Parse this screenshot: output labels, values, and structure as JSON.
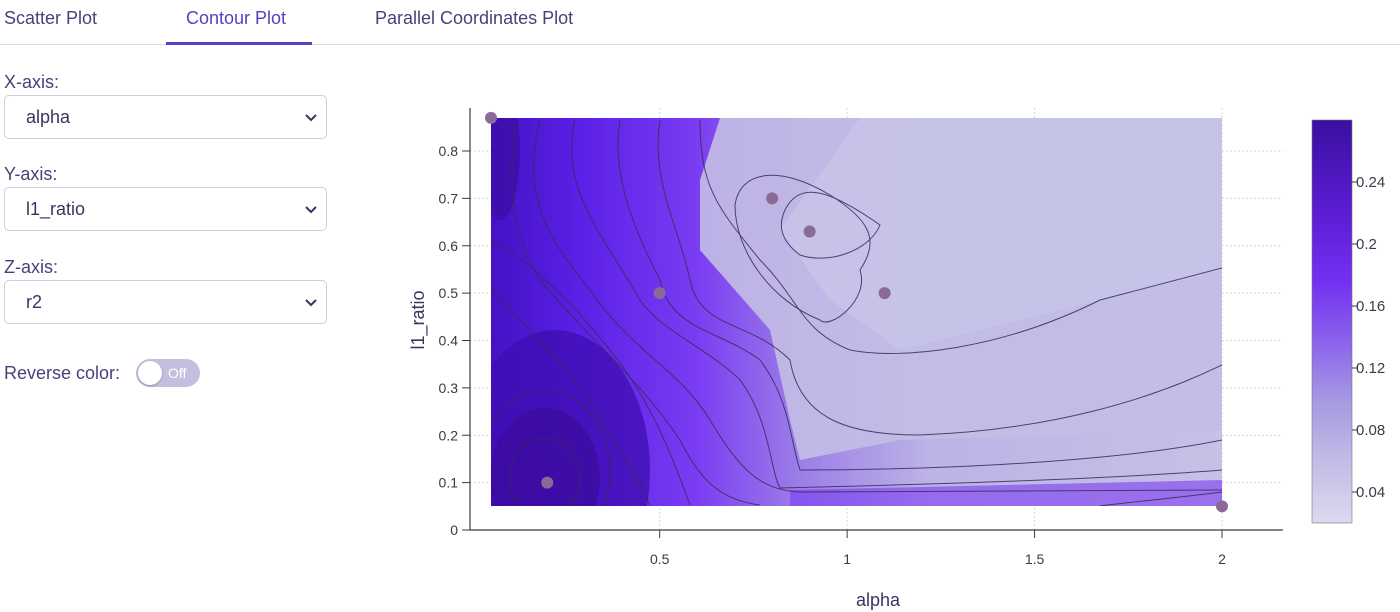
{
  "tabs": [
    {
      "label": "Scatter Plot",
      "active": false
    },
    {
      "label": "Contour Plot",
      "active": true
    },
    {
      "label": "Parallel Coordinates Plot",
      "active": false
    }
  ],
  "controls": {
    "x_axis": {
      "label": "X-axis:",
      "value": "alpha"
    },
    "y_axis": {
      "label": "Y-axis:",
      "value": "l1_ratio"
    },
    "z_axis": {
      "label": "Z-axis:",
      "value": "r2"
    },
    "reverse_color": {
      "label": "Reverse color:",
      "state": "Off"
    }
  },
  "colors": {
    "accent": "#5b3cc4",
    "dark_purple": "#3b0fa8",
    "light_lavender": "#c4c0e4",
    "point": "#8a6a96"
  },
  "chart_data": {
    "type": "contour",
    "xlabel": "alpha",
    "ylabel": "l1_ratio",
    "x_ticks": [
      "0.5",
      "1",
      "1.5",
      "2"
    ],
    "x_tick_values": [
      0.5,
      1,
      1.5,
      2
    ],
    "y_ticks": [
      "0",
      "0.1",
      "0.2",
      "0.3",
      "0.4",
      "0.5",
      "0.6",
      "0.7",
      "0.8"
    ],
    "y_tick_values": [
      0,
      0.1,
      0.2,
      0.3,
      0.4,
      0.5,
      0.6,
      0.7,
      0.8
    ],
    "xlim": [
      0.05,
      2
    ],
    "ylim": [
      0.05,
      0.87
    ],
    "colorbar": {
      "ticks": [
        "0.04",
        "0.08",
        "0.12",
        "0.16",
        "0.2",
        "0.24"
      ],
      "tick_values": [
        0.04,
        0.08,
        0.12,
        0.16,
        0.2,
        0.24
      ],
      "range": [
        0.02,
        0.28
      ]
    },
    "points": [
      {
        "x": 0.05,
        "y": 0.87
      },
      {
        "x": 0.2,
        "y": 0.1
      },
      {
        "x": 0.5,
        "y": 0.5
      },
      {
        "x": 0.8,
        "y": 0.7
      },
      {
        "x": 0.9,
        "y": 0.63
      },
      {
        "x": 1.1,
        "y": 0.5
      },
      {
        "x": 2.0,
        "y": 0.05
      }
    ]
  }
}
